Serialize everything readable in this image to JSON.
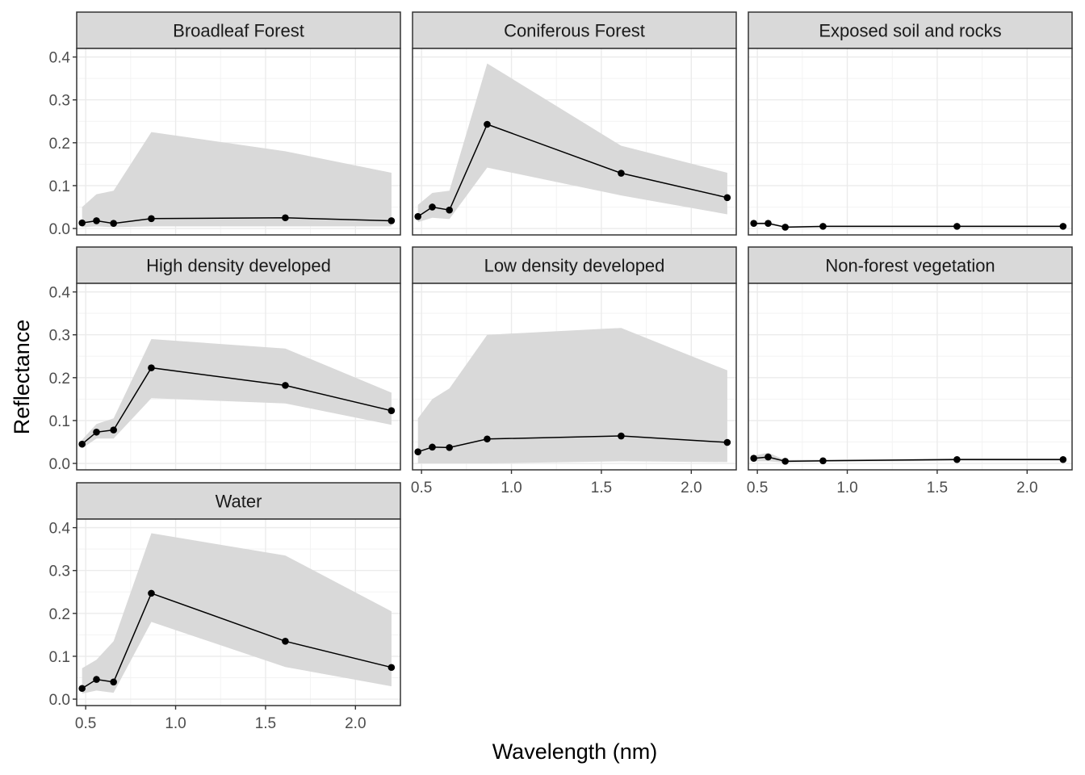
{
  "chart_data": {
    "type": "line",
    "subtype": "faceted line with ribbon",
    "xlabel": "Wavelength (nm)",
    "ylabel": "Reflectance",
    "xlim": [
      0.45,
      2.25
    ],
    "ylim": [
      -0.015,
      0.42
    ],
    "x_ticks": [
      "0.5",
      "1.0",
      "1.5",
      "2.0"
    ],
    "x_tick_values": [
      0.5,
      1.0,
      1.5,
      2.0
    ],
    "y_ticks": [
      "0.0",
      "0.1",
      "0.2",
      "0.3",
      "0.4"
    ],
    "y_tick_values": [
      0.0,
      0.1,
      0.2,
      0.3,
      0.4
    ],
    "grid": true,
    "colors": {
      "line": "#000000",
      "ribbon": "#d9d9d9",
      "strip": "#d9d9d9",
      "grid": "#ebebeb",
      "border": "#333333"
    },
    "x": [
      0.48,
      0.56,
      0.655,
      0.865,
      1.61,
      2.2
    ],
    "panels": [
      {
        "title": "Broadleaf Forest",
        "y": [
          0.013,
          0.018,
          0.012,
          0.023,
          0.025,
          0.018
        ],
        "lower": [
          0.003,
          0.005,
          0.003,
          0.005,
          0.005,
          0.005
        ],
        "upper": [
          0.05,
          0.08,
          0.088,
          0.225,
          0.18,
          0.13
        ]
      },
      {
        "title": "Coniferous Forest",
        "y": [
          0.028,
          0.05,
          0.043,
          0.243,
          0.129,
          0.072
        ],
        "lower": [
          0.015,
          0.025,
          0.022,
          0.142,
          0.077,
          0.033
        ],
        "upper": [
          0.055,
          0.083,
          0.088,
          0.385,
          0.193,
          0.13
        ]
      },
      {
        "title": "Exposed soil and rocks",
        "y": [
          0.012,
          0.012,
          0.003,
          0.005,
          0.005,
          0.005
        ],
        "lower": [
          0.009,
          0.009,
          0.002,
          0.003,
          0.003,
          0.003
        ],
        "upper": [
          0.014,
          0.015,
          0.005,
          0.007,
          0.007,
          0.007
        ]
      },
      {
        "title": "High density developed",
        "y": [
          0.045,
          0.073,
          0.078,
          0.223,
          0.182,
          0.123
        ],
        "lower": [
          0.035,
          0.058,
          0.058,
          0.152,
          0.14,
          0.09
        ],
        "upper": [
          0.055,
          0.092,
          0.105,
          0.29,
          0.268,
          0.165
        ]
      },
      {
        "title": "Low density developed",
        "y": [
          0.027,
          0.038,
          0.037,
          0.057,
          0.064,
          0.049
        ],
        "lower": [
          0.0,
          0.0,
          0.0,
          0.0,
          0.005,
          0.003
        ],
        "upper": [
          0.105,
          0.15,
          0.175,
          0.3,
          0.316,
          0.217
        ]
      },
      {
        "title": "Non-forest vegetation",
        "y": [
          0.012,
          0.015,
          0.005,
          0.006,
          0.009,
          0.009
        ],
        "lower": [
          0.005,
          0.005,
          0.002,
          0.004,
          0.006,
          0.006
        ],
        "upper": [
          0.018,
          0.025,
          0.008,
          0.009,
          0.012,
          0.012
        ]
      },
      {
        "title": "Water",
        "y": [
          0.025,
          0.046,
          0.04,
          0.247,
          0.135,
          0.074
        ],
        "lower": [
          0.013,
          0.02,
          0.015,
          0.18,
          0.075,
          0.03
        ],
        "upper": [
          0.072,
          0.092,
          0.135,
          0.387,
          0.335,
          0.205
        ]
      }
    ]
  }
}
